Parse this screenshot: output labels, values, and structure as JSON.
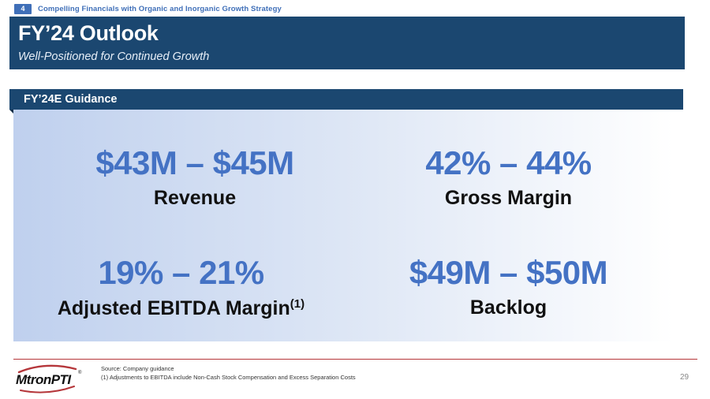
{
  "top_bar": {
    "section_number": "4",
    "section_title": "Compelling Financials with Organic and Inorganic Growth Strategy"
  },
  "header": {
    "title": "FY’24 Outlook",
    "subtitle": "Well-Positioned for Continued Growth"
  },
  "guidance": {
    "heading": "FY’24E Guidance",
    "metrics": [
      {
        "value": "$43M – $45M",
        "label": "Revenue",
        "sup": ""
      },
      {
        "value": "42% – 44%",
        "label": "Gross Margin",
        "sup": ""
      },
      {
        "value": "19% – 21%",
        "label": "Adjusted EBITDA Margin",
        "sup": "(1)"
      },
      {
        "value": "$49M – $50M",
        "label": "Backlog",
        "sup": ""
      }
    ]
  },
  "footer": {
    "logo_text": "MtronPTI",
    "logo_mark": "®",
    "source": "Source: Company guidance",
    "footnote_1": "(1) Adjustments to EBITDA include Non-Cash Stock Compensation and Excess Separation Costs",
    "page_number": "29"
  },
  "colors": {
    "header_band": "#1b4770",
    "accent_blue": "#4472c4",
    "divider_red": "#b5363a"
  }
}
